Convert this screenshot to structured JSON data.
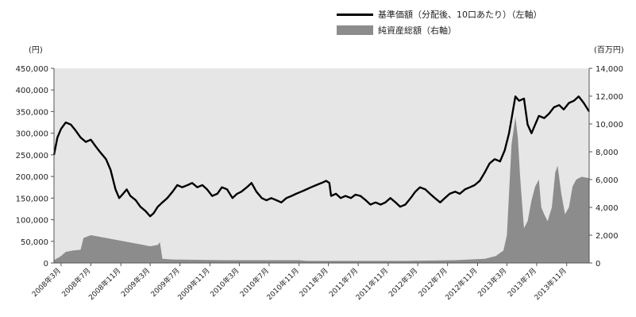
{
  "legend": {
    "line_label": "基準価額（分配後、10口あたり）（左軸）",
    "area_label": "純資産総額（右軸）"
  },
  "axes": {
    "left_unit": "(円)",
    "right_unit": "(百万円)"
  },
  "chart_data": {
    "type": "line",
    "title": "",
    "background_color": "#e6e6e6",
    "line_color": "#000000",
    "area_color": "#8c8c8c",
    "left_axis": {
      "ylim": [
        0,
        450000
      ],
      "ticks": [
        "0",
        "50,000",
        "100,000",
        "150,000",
        "200,000",
        "250,000",
        "300,000",
        "350,000",
        "400,000",
        "450,000"
      ]
    },
    "right_axis": {
      "ylim": [
        0,
        14000
      ],
      "ticks": [
        "0",
        "2,000",
        "4,000",
        "6,000",
        "8,000",
        "10,000",
        "12,000",
        "14,000"
      ]
    },
    "x_ticks": [
      "2008年3月",
      "2008年7月",
      "2008年11月",
      "2009年3月",
      "2009年7月",
      "2009年11月",
      "2010年3月",
      "2010年7月",
      "2010年11月",
      "2011年3月",
      "2011年7月",
      "2011年11月",
      "2012年3月",
      "2012年7月",
      "2012年11月",
      "2013年3月",
      "2013年7月",
      "2013年11月"
    ],
    "x_range": [
      "2008-02-01",
      "2014-02-01"
    ],
    "series": [
      {
        "name": "基準価額（分配後、10口あたり）（左軸）",
        "axis": "left",
        "points": [
          [
            "2008-02-01",
            250000
          ],
          [
            "2008-02-15",
            290000
          ],
          [
            "2008-03-01",
            310000
          ],
          [
            "2008-03-20",
            325000
          ],
          [
            "2008-04-10",
            320000
          ],
          [
            "2008-05-01",
            305000
          ],
          [
            "2008-05-20",
            290000
          ],
          [
            "2008-06-10",
            280000
          ],
          [
            "2008-07-01",
            285000
          ],
          [
            "2008-07-20",
            270000
          ],
          [
            "2008-08-10",
            255000
          ],
          [
            "2008-09-01",
            240000
          ],
          [
            "2008-09-20",
            215000
          ],
          [
            "2008-10-10",
            170000
          ],
          [
            "2008-10-25",
            150000
          ],
          [
            "2008-11-10",
            160000
          ],
          [
            "2008-11-25",
            170000
          ],
          [
            "2008-12-10",
            155000
          ],
          [
            "2009-01-01",
            145000
          ],
          [
            "2009-01-20",
            130000
          ],
          [
            "2009-02-10",
            120000
          ],
          [
            "2009-03-01",
            108000
          ],
          [
            "2009-03-15",
            115000
          ],
          [
            "2009-04-01",
            130000
          ],
          [
            "2009-04-20",
            140000
          ],
          [
            "2009-05-10",
            150000
          ],
          [
            "2009-06-01",
            165000
          ],
          [
            "2009-06-20",
            180000
          ],
          [
            "2009-07-10",
            175000
          ],
          [
            "2009-08-01",
            180000
          ],
          [
            "2009-08-20",
            185000
          ],
          [
            "2009-09-10",
            175000
          ],
          [
            "2009-10-01",
            180000
          ],
          [
            "2009-10-20",
            170000
          ],
          [
            "2009-11-10",
            155000
          ],
          [
            "2009-12-01",
            160000
          ],
          [
            "2009-12-20",
            175000
          ],
          [
            "2010-01-10",
            170000
          ],
          [
            "2010-02-01",
            150000
          ],
          [
            "2010-02-20",
            160000
          ],
          [
            "2010-03-10",
            165000
          ],
          [
            "2010-04-01",
            175000
          ],
          [
            "2010-04-20",
            185000
          ],
          [
            "2010-05-10",
            165000
          ],
          [
            "2010-06-01",
            150000
          ],
          [
            "2010-06-20",
            145000
          ],
          [
            "2010-07-10",
            150000
          ],
          [
            "2010-08-01",
            145000
          ],
          [
            "2010-08-20",
            140000
          ],
          [
            "2010-09-10",
            150000
          ],
          [
            "2010-10-01",
            155000
          ],
          [
            "2010-10-20",
            160000
          ],
          [
            "2010-11-10",
            165000
          ],
          [
            "2010-12-01",
            170000
          ],
          [
            "2010-12-20",
            175000
          ],
          [
            "2011-01-10",
            180000
          ],
          [
            "2011-02-01",
            185000
          ],
          [
            "2011-02-20",
            190000
          ],
          [
            "2011-03-05",
            185000
          ],
          [
            "2011-03-12",
            155000
          ],
          [
            "2011-04-01",
            160000
          ],
          [
            "2011-04-20",
            150000
          ],
          [
            "2011-05-10",
            155000
          ],
          [
            "2011-06-01",
            150000
          ],
          [
            "2011-06-20",
            158000
          ],
          [
            "2011-07-10",
            155000
          ],
          [
            "2011-08-01",
            145000
          ],
          [
            "2011-08-20",
            135000
          ],
          [
            "2011-09-10",
            140000
          ],
          [
            "2011-10-01",
            135000
          ],
          [
            "2011-10-20",
            140000
          ],
          [
            "2011-11-10",
            150000
          ],
          [
            "2011-12-01",
            140000
          ],
          [
            "2011-12-20",
            130000
          ],
          [
            "2012-01-10",
            135000
          ],
          [
            "2012-02-01",
            150000
          ],
          [
            "2012-02-20",
            165000
          ],
          [
            "2012-03-10",
            175000
          ],
          [
            "2012-04-01",
            170000
          ],
          [
            "2012-04-20",
            160000
          ],
          [
            "2012-05-10",
            150000
          ],
          [
            "2012-06-01",
            140000
          ],
          [
            "2012-06-20",
            150000
          ],
          [
            "2012-07-10",
            160000
          ],
          [
            "2012-08-01",
            165000
          ],
          [
            "2012-08-20",
            160000
          ],
          [
            "2012-09-10",
            170000
          ],
          [
            "2012-10-01",
            175000
          ],
          [
            "2012-10-20",
            180000
          ],
          [
            "2012-11-10",
            190000
          ],
          [
            "2012-12-01",
            210000
          ],
          [
            "2012-12-20",
            230000
          ],
          [
            "2013-01-10",
            240000
          ],
          [
            "2013-02-01",
            235000
          ],
          [
            "2013-02-20",
            260000
          ],
          [
            "2013-03-10",
            300000
          ],
          [
            "2013-03-25",
            350000
          ],
          [
            "2013-04-05",
            385000
          ],
          [
            "2013-04-20",
            375000
          ],
          [
            "2013-05-10",
            380000
          ],
          [
            "2013-05-25",
            320000
          ],
          [
            "2013-06-10",
            300000
          ],
          [
            "2013-06-25",
            320000
          ],
          [
            "2013-07-10",
            340000
          ],
          [
            "2013-08-01",
            335000
          ],
          [
            "2013-08-20",
            345000
          ],
          [
            "2013-09-10",
            360000
          ],
          [
            "2013-10-01",
            365000
          ],
          [
            "2013-10-20",
            355000
          ],
          [
            "2013-11-10",
            370000
          ],
          [
            "2013-12-01",
            375000
          ],
          [
            "2013-12-20",
            385000
          ],
          [
            "2014-01-10",
            370000
          ],
          [
            "2014-02-01",
            350000
          ]
        ]
      },
      {
        "name": "純資産総額（右軸）",
        "axis": "right",
        "points": [
          [
            "2008-02-01",
            200
          ],
          [
            "2008-03-01",
            500
          ],
          [
            "2008-03-20",
            800
          ],
          [
            "2008-04-20",
            900
          ],
          [
            "2008-05-20",
            950
          ],
          [
            "2008-06-01",
            1800
          ],
          [
            "2008-07-01",
            2000
          ],
          [
            "2008-08-01",
            1900
          ],
          [
            "2008-09-01",
            1800
          ],
          [
            "2008-10-01",
            1700
          ],
          [
            "2008-11-01",
            1600
          ],
          [
            "2008-12-01",
            1500
          ],
          [
            "2009-01-01",
            1400
          ],
          [
            "2009-02-01",
            1300
          ],
          [
            "2009-03-01",
            1200
          ],
          [
            "2009-04-01",
            1300
          ],
          [
            "2009-04-10",
            1500
          ],
          [
            "2009-04-20",
            300
          ],
          [
            "2009-06-01",
            250
          ],
          [
            "2010-01-01",
            200
          ],
          [
            "2010-11-01",
            200
          ],
          [
            "2010-12-01",
            150
          ],
          [
            "2011-06-01",
            150
          ],
          [
            "2012-01-01",
            150
          ],
          [
            "2012-08-01",
            200
          ],
          [
            "2012-12-01",
            300
          ],
          [
            "2013-01-15",
            500
          ],
          [
            "2013-02-15",
            900
          ],
          [
            "2013-03-01",
            2000
          ],
          [
            "2013-03-10",
            5000
          ],
          [
            "2013-03-20",
            8500
          ],
          [
            "2013-04-05",
            10500
          ],
          [
            "2013-04-15",
            9000
          ],
          [
            "2013-04-25",
            6000
          ],
          [
            "2013-05-10",
            2500
          ],
          [
            "2013-05-25",
            3000
          ],
          [
            "2013-06-10",
            4500
          ],
          [
            "2013-06-25",
            5500
          ],
          [
            "2013-07-10",
            6000
          ],
          [
            "2013-07-20",
            4000
          ],
          [
            "2013-08-01",
            3500
          ],
          [
            "2013-08-15",
            3000
          ],
          [
            "2013-09-01",
            4000
          ],
          [
            "2013-09-15",
            6500
          ],
          [
            "2013-09-25",
            7000
          ],
          [
            "2013-10-10",
            5000
          ],
          [
            "2013-10-25",
            3500
          ],
          [
            "2013-11-10",
            4000
          ],
          [
            "2013-11-25",
            5500
          ],
          [
            "2013-12-10",
            6000
          ],
          [
            "2014-01-01",
            6200
          ],
          [
            "2014-02-01",
            6100
          ]
        ]
      }
    ]
  }
}
